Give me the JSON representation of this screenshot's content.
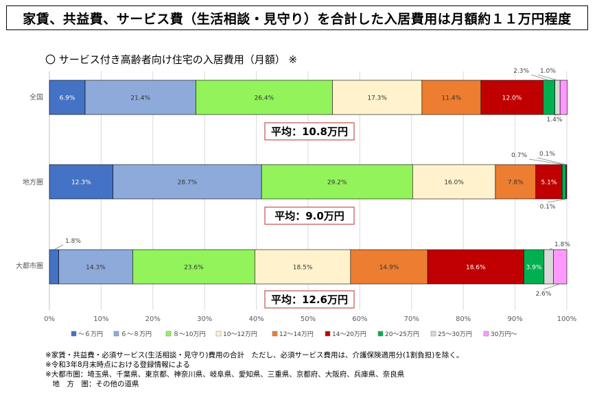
{
  "title": "家賃、共益費、サービス費（生活相談・見守り）を合計した入居費用は月額約１１万円程度",
  "subtitle": "〇 サービス付き高齢者向け住宅の入居費用（月額） ※",
  "chart_data": {
    "type": "bar",
    "orientation": "horizontal-stacked-100",
    "categories": [
      "全国",
      "地方圏",
      "大都市圏"
    ],
    "series": [
      {
        "name": "～６万円",
        "color": "#4472c4",
        "values": [
          6.9,
          12.3,
          1.8
        ]
      },
      {
        "name": "６～８万円",
        "color": "#8eaadb",
        "values": [
          21.4,
          28.7,
          14.3
        ]
      },
      {
        "name": "８～10万円",
        "color": "#92f35a",
        "values": [
          26.4,
          29.2,
          23.6
        ]
      },
      {
        "name": "10～12万円",
        "color": "#fff2cc",
        "values": [
          17.3,
          16.0,
          18.5
        ]
      },
      {
        "name": "12～14万円",
        "color": "#ed7d31",
        "values": [
          11.4,
          7.8,
          14.9
        ]
      },
      {
        "name": "14～20万円",
        "color": "#c00000",
        "values": [
          12.0,
          5.1,
          18.6
        ]
      },
      {
        "name": "20～25万円",
        "color": "#00b050",
        "values": [
          2.3,
          0.7,
          3.9
        ]
      },
      {
        "name": "25～30万円",
        "color": "#d9d9d9",
        "values": [
          1.0,
          0.1,
          1.8
        ]
      },
      {
        "name": "30万円～",
        "color": "#ff99ff",
        "values": [
          1.4,
          0.1,
          2.6
        ]
      }
    ],
    "xaxis_ticks": [
      "0%",
      "10%",
      "20%",
      "30%",
      "40%",
      "50%",
      "60%",
      "70%",
      "80%",
      "90%",
      "100%"
    ],
    "xlim": [
      0,
      100
    ],
    "legend_position": "bottom",
    "averages": [
      "平均：10.8万円",
      "平均：9.0万円",
      "平均：12.6万円"
    ],
    "label_text": {
      "全国": [
        "6.9%",
        "21.4%",
        "26.4%",
        "17.3%",
        "11.4%",
        "12.0%",
        "2.3%",
        "1.0%",
        "1.4%"
      ],
      "地方圏": [
        "12.3%",
        "28.7%",
        "29.2%",
        "16.0%",
        "7.8%",
        "5.1%",
        "0.7%",
        "0.1%",
        "0.1%"
      ],
      "大都市圏": [
        "1.8%",
        "14.3%",
        "23.6%",
        "18.5%",
        "14.9%",
        "18.6%",
        "3.9%",
        "1.8%",
        "2.6%"
      ]
    }
  },
  "notes": [
    "※家賃・共益費・必須サービス(生活相談・見守り)費用の合計　ただし、必須サービス費用は、介護保険適用分(1割負担)を除く。",
    "※令和3年8月末時点における登録情報による",
    "※大都市圏：埼玉県、千葉県、東京都、神奈川県、岐阜県、愛知県、三重県、京都府、大阪府、兵庫県、奈良県",
    "　地　方　圏：その他の道県"
  ]
}
